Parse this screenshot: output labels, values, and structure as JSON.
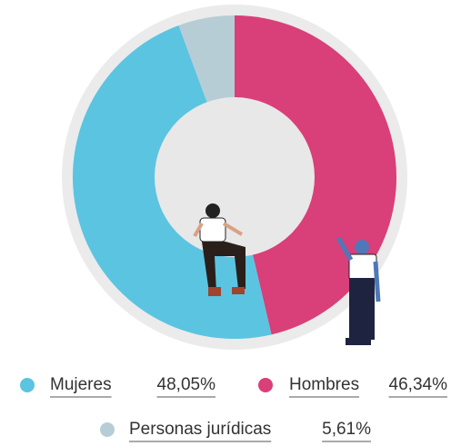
{
  "chart_data": {
    "type": "donut",
    "series": [
      {
        "name": "Mujeres",
        "color": "#5bc4e1",
        "values": [
          48.05
        ],
        "value_labels": [
          "48,05%"
        ]
      },
      {
        "name": "Hombres",
        "color": "#d93f78",
        "values": [
          46.34
        ],
        "value_labels": [
          "46,34%"
        ]
      },
      {
        "name": "Personas jurídicas",
        "color": "#b7cdd6",
        "values": [
          5.61
        ],
        "value_labels": [
          "5,61%"
        ]
      }
    ]
  }
}
